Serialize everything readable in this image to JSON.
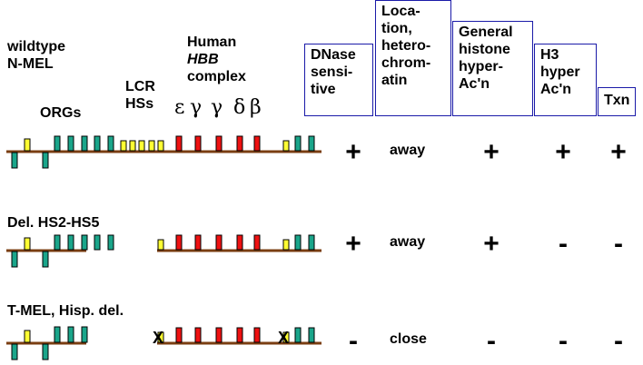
{
  "labels": {
    "wildtype_line1": "wildtype",
    "wildtype_line2": "N-MEL",
    "orgs": "ORGs",
    "lcr_line1": "LCR",
    "lcr_line2": "HSs",
    "human_line1": "Human",
    "human_line2": "HBB",
    "human_line3": "complex",
    "greek": [
      "ε",
      "γ",
      "γ",
      "δ",
      "β"
    ],
    "del_hs": "Del. HS2-HS5",
    "tmel": "T-MEL, Hisp. del.",
    "x_mark": "X"
  },
  "columns": [
    {
      "lines": [
        "DNase",
        "sensi-",
        "tive"
      ]
    },
    {
      "lines": [
        "Loca-",
        "tion,",
        "hetero-",
        "chrom-",
        "atin"
      ]
    },
    {
      "lines": [
        "General",
        "histone",
        "hyper-",
        "Ac'n"
      ]
    },
    {
      "lines": [
        "H3",
        "hyper",
        "Ac'n"
      ]
    },
    {
      "lines": [
        "Txn"
      ]
    }
  ],
  "rows": [
    {
      "name": "wildtype",
      "dnase": "+",
      "location": "away",
      "histone": "+",
      "h3": "+",
      "txn": "+"
    },
    {
      "name": "del-hs2-hs5",
      "dnase": "+",
      "location": "away",
      "histone": "+",
      "h3": "-",
      "txn": "-"
    },
    {
      "name": "tmel-hisp",
      "dnase": "-",
      "location": "close",
      "histone": "-",
      "h3": "-",
      "txn": "-"
    }
  ],
  "colors": {
    "line": "#7a3e12",
    "org": "#1aa58a",
    "lcr": "#ffff33",
    "hbb": "#ee1111",
    "header_border": "#1a1aa8"
  }
}
